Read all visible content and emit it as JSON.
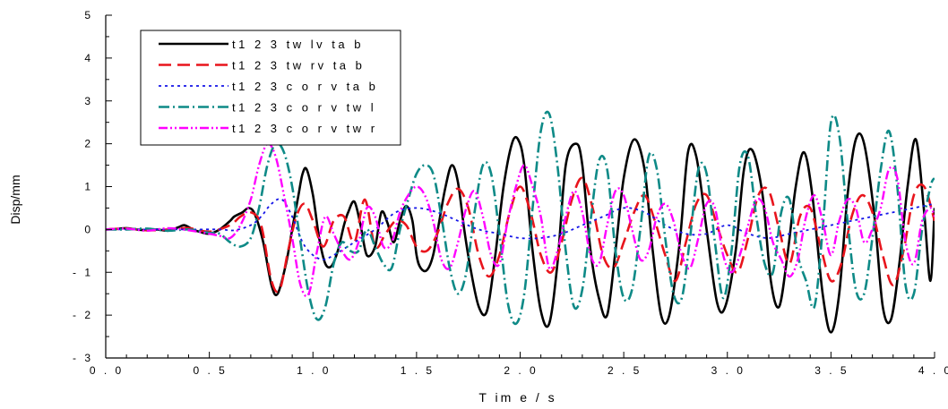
{
  "chart_data": {
    "type": "line",
    "title": "",
    "xlabel": "T im e / s",
    "ylabel": "Disp/mm",
    "xlim": [
      0,
      4
    ],
    "ylim": [
      -3,
      5
    ],
    "x_ticks": [
      0,
      0.5,
      1,
      1.5,
      2,
      2.5,
      3,
      3.5,
      4
    ],
    "x_tick_labels": [
      "0 . 0",
      "0 . 5",
      "1 . 0",
      "1 . 5",
      "2 . 0",
      "2 . 5",
      "3 . 0",
      "3 . 5",
      "4 . 0"
    ],
    "y_ticks": [
      -3,
      -2,
      -1,
      0,
      1,
      2,
      3,
      4,
      5
    ],
    "y_tick_labels": [
      "- 3",
      "- 2",
      "- 1",
      "0",
      "1",
      "2",
      "3",
      "4",
      "5"
    ],
    "grid": false,
    "legend_position": "top-left",
    "series": [
      {
        "name": "t1 2 3 tw lv ta b",
        "color": "#000000",
        "dash": "solid",
        "x": [
          0.0,
          0.05,
          0.1,
          0.15,
          0.2,
          0.25,
          0.3,
          0.35,
          0.38,
          0.42,
          0.45,
          0.5,
          0.55,
          0.6,
          0.62,
          0.66,
          0.69,
          0.72,
          0.76,
          0.8,
          0.83,
          0.87,
          0.9,
          0.93,
          0.95,
          0.97,
          1.0,
          1.03,
          1.06,
          1.09,
          1.12,
          1.15,
          1.17,
          1.2,
          1.23,
          1.26,
          1.3,
          1.33,
          1.36,
          1.39,
          1.42,
          1.45,
          1.48,
          1.5,
          1.52,
          1.55,
          1.58,
          1.61,
          1.64,
          1.67,
          1.7,
          1.73,
          1.76,
          1.8,
          1.84,
          1.88,
          1.92,
          1.96,
          1.99,
          2.02,
          2.06,
          2.1,
          2.14,
          2.18,
          2.22,
          2.27,
          2.3,
          2.34,
          2.38,
          2.42,
          2.46,
          2.5,
          2.55,
          2.6,
          2.64,
          2.68,
          2.72,
          2.77,
          2.81,
          2.85,
          2.9,
          2.95,
          2.99,
          3.04,
          3.08,
          3.12,
          3.17,
          3.21,
          3.25,
          3.29,
          3.33,
          3.37,
          3.41,
          3.46,
          3.5,
          3.54,
          3.58,
          3.62,
          3.66,
          3.71,
          3.75,
          3.79,
          3.83,
          3.87,
          3.91,
          3.95,
          3.98,
          4.0
        ],
        "values": [
          0.0,
          0.01,
          0.03,
          0.0,
          -0.02,
          0.0,
          -0.03,
          0.05,
          0.1,
          0.0,
          -0.05,
          -0.1,
          0.0,
          0.2,
          0.3,
          0.4,
          0.5,
          0.35,
          -0.3,
          -1.3,
          -1.5,
          -0.8,
          0.0,
          0.8,
          1.3,
          1.4,
          0.8,
          -0.2,
          -0.8,
          -0.85,
          -0.5,
          0.1,
          0.4,
          0.65,
          0.1,
          -0.6,
          -0.4,
          0.4,
          0.15,
          -0.3,
          0.2,
          0.55,
          0.2,
          -0.6,
          -0.9,
          -0.95,
          -0.6,
          0.2,
          1.0,
          1.5,
          1.1,
          0.0,
          -0.9,
          -1.8,
          -1.9,
          -0.6,
          1.0,
          2.0,
          2.1,
          1.5,
          -0.5,
          -1.9,
          -2.2,
          -0.8,
          1.5,
          2.0,
          1.5,
          -0.5,
          -1.6,
          -2.0,
          -0.5,
          1.2,
          2.1,
          1.4,
          -0.5,
          -2.0,
          -2.0,
          -0.3,
          1.8,
          1.7,
          0.0,
          -1.7,
          -1.8,
          -0.5,
          1.4,
          1.85,
          0.8,
          -1.2,
          -1.8,
          -0.6,
          1.0,
          1.8,
          0.8,
          -1.5,
          -2.4,
          -1.5,
          0.8,
          2.1,
          2.0,
          0.3,
          -1.8,
          -2.1,
          -0.8,
          1.0,
          2.1,
          0.4,
          -1.2,
          0.5
        ]
      },
      {
        "name": "t1 2 3 tw rv ta b",
        "color": "#e8141c",
        "dash": "14 7",
        "x": [
          0.0,
          0.1,
          0.2,
          0.3,
          0.4,
          0.5,
          0.6,
          0.65,
          0.7,
          0.75,
          0.8,
          0.84,
          0.88,
          0.92,
          0.96,
          1.0,
          1.05,
          1.1,
          1.15,
          1.2,
          1.25,
          1.3,
          1.35,
          1.4,
          1.45,
          1.5,
          1.55,
          1.6,
          1.65,
          1.7,
          1.75,
          1.8,
          1.85,
          1.9,
          1.95,
          2.0,
          2.05,
          2.1,
          2.15,
          2.2,
          2.25,
          2.3,
          2.35,
          2.4,
          2.45,
          2.5,
          2.55,
          2.6,
          2.65,
          2.7,
          2.75,
          2.8,
          2.85,
          2.9,
          2.95,
          3.0,
          3.05,
          3.1,
          3.15,
          3.2,
          3.25,
          3.3,
          3.35,
          3.4,
          3.45,
          3.5,
          3.55,
          3.6,
          3.65,
          3.7,
          3.75,
          3.8,
          3.85,
          3.9,
          3.95,
          4.0
        ],
        "values": [
          0.0,
          0.02,
          -0.02,
          0.0,
          0.03,
          -0.05,
          0.1,
          0.3,
          0.4,
          0.1,
          -1.2,
          -1.4,
          -0.5,
          0.3,
          0.6,
          0.2,
          -0.4,
          0.2,
          0.3,
          -0.3,
          0.7,
          -0.4,
          -0.1,
          0.2,
          0.1,
          -0.4,
          -0.5,
          -0.1,
          0.6,
          0.95,
          0.5,
          -0.6,
          -1.1,
          -0.6,
          0.4,
          1.0,
          0.4,
          -0.6,
          -1.0,
          -0.3,
          0.7,
          1.2,
          0.5,
          -0.6,
          -0.9,
          -0.3,
          0.4,
          0.8,
          0.2,
          -0.6,
          -1.2,
          -0.3,
          0.6,
          0.8,
          0.1,
          -0.6,
          -1.0,
          -0.2,
          0.8,
          0.9,
          0.0,
          -0.8,
          0.3,
          0.5,
          -0.4,
          -1.2,
          -0.8,
          0.3,
          0.8,
          0.4,
          -0.6,
          -1.3,
          -0.5,
          0.8,
          1.0,
          0.2
        ]
      },
      {
        "name": "t1 2 3 c o r v ta b",
        "color": "#1414e8",
        "dash": "3 4",
        "x": [
          0.0,
          0.2,
          0.4,
          0.55,
          0.62,
          0.7,
          0.75,
          0.8,
          0.85,
          0.9,
          0.95,
          1.0,
          1.05,
          1.1,
          1.2,
          1.3,
          1.4,
          1.5,
          1.6,
          1.7,
          1.8,
          1.9,
          2.0,
          2.1,
          2.2,
          2.3,
          2.4,
          2.5,
          2.6,
          2.7,
          2.8,
          2.9,
          3.0,
          3.1,
          3.2,
          3.3,
          3.4,
          3.5,
          3.6,
          3.7,
          3.8,
          3.9,
          4.0
        ],
        "values": [
          0.0,
          0.0,
          0.0,
          0.0,
          -0.02,
          0.1,
          0.3,
          0.6,
          0.7,
          0.3,
          -0.3,
          -0.6,
          -0.7,
          -0.6,
          -0.3,
          0.0,
          0.4,
          0.5,
          0.4,
          0.2,
          0.0,
          -0.1,
          -0.2,
          -0.2,
          -0.1,
          0.1,
          0.3,
          0.5,
          0.4,
          0.1,
          -0.1,
          -0.1,
          0.1,
          -0.1,
          -0.2,
          -0.1,
          0.0,
          0.1,
          0.2,
          0.3,
          0.4,
          0.5,
          0.6
        ]
      },
      {
        "name": "t1 2 3 c o r v tw l",
        "color": "#0e8a87",
        "dash": "12 4 2 4",
        "x": [
          0.0,
          0.1,
          0.2,
          0.3,
          0.4,
          0.5,
          0.55,
          0.6,
          0.65,
          0.7,
          0.74,
          0.78,
          0.82,
          0.86,
          0.9,
          0.94,
          0.98,
          1.02,
          1.06,
          1.1,
          1.14,
          1.18,
          1.22,
          1.26,
          1.3,
          1.34,
          1.38,
          1.42,
          1.46,
          1.5,
          1.54,
          1.58,
          1.62,
          1.66,
          1.7,
          1.74,
          1.78,
          1.82,
          1.86,
          1.9,
          1.94,
          1.98,
          2.02,
          2.06,
          2.1,
          2.14,
          2.18,
          2.22,
          2.26,
          2.3,
          2.34,
          2.38,
          2.42,
          2.46,
          2.5,
          2.54,
          2.58,
          2.62,
          2.66,
          2.7,
          2.74,
          2.78,
          2.82,
          2.86,
          2.9,
          2.94,
          2.98,
          3.02,
          3.06,
          3.1,
          3.14,
          3.18,
          3.22,
          3.26,
          3.3,
          3.34,
          3.38,
          3.42,
          3.46,
          3.5,
          3.54,
          3.58,
          3.62,
          3.66,
          3.7,
          3.74,
          3.78,
          3.82,
          3.86,
          3.9,
          3.94,
          3.98,
          4.0
        ],
        "values": [
          0.0,
          0.0,
          0.02,
          -0.03,
          0.0,
          -0.08,
          -0.1,
          -0.3,
          -0.4,
          -0.2,
          0.5,
          1.5,
          2.0,
          1.8,
          1.0,
          -0.3,
          -1.5,
          -2.1,
          -1.8,
          -0.8,
          -0.3,
          -0.5,
          -0.5,
          0.0,
          -0.4,
          -0.8,
          -0.9,
          0.0,
          0.7,
          1.3,
          1.5,
          1.3,
          0.3,
          -0.9,
          -1.5,
          -1.0,
          0.4,
          1.5,
          1.3,
          -0.1,
          -1.7,
          -2.2,
          -1.5,
          0.5,
          2.3,
          2.7,
          1.5,
          -0.5,
          -1.8,
          -1.4,
          0.2,
          1.6,
          1.4,
          -0.5,
          -1.6,
          -1.4,
          0.0,
          1.7,
          1.4,
          -0.2,
          -1.5,
          -1.6,
          -0.2,
          1.4,
          1.3,
          -0.3,
          -1.6,
          -0.5,
          1.5,
          1.7,
          0.3,
          -0.8,
          -1.0,
          0.4,
          0.7,
          -0.6,
          -1.2,
          -1.8,
          0.0,
          2.5,
          2.2,
          0.2,
          -1.4,
          -1.5,
          -0.2,
          1.4,
          2.3,
          1.0,
          -1.3,
          -1.5,
          0.0,
          1.0,
          1.2
        ]
      },
      {
        "name": "t1 2 3 c o r v tw r",
        "color": "#ff00ff",
        "dash": "10 3 2 3 2 3",
        "x": [
          0.0,
          0.1,
          0.2,
          0.3,
          0.4,
          0.5,
          0.55,
          0.6,
          0.65,
          0.7,
          0.74,
          0.78,
          0.82,
          0.86,
          0.9,
          0.94,
          0.98,
          1.02,
          1.06,
          1.1,
          1.14,
          1.18,
          1.22,
          1.26,
          1.3,
          1.34,
          1.38,
          1.42,
          1.46,
          1.5,
          1.54,
          1.58,
          1.62,
          1.66,
          1.7,
          1.74,
          1.78,
          1.82,
          1.86,
          1.9,
          1.94,
          1.98,
          2.02,
          2.06,
          2.1,
          2.14,
          2.18,
          2.22,
          2.26,
          2.3,
          2.34,
          2.38,
          2.42,
          2.46,
          2.5,
          2.54,
          2.58,
          2.62,
          2.66,
          2.7,
          2.74,
          2.78,
          2.82,
          2.86,
          2.9,
          2.94,
          2.98,
          3.02,
          3.06,
          3.1,
          3.14,
          3.18,
          3.22,
          3.26,
          3.3,
          3.34,
          3.38,
          3.42,
          3.46,
          3.5,
          3.54,
          3.58,
          3.62,
          3.66,
          3.7,
          3.74,
          3.78,
          3.82,
          3.86,
          3.9,
          3.94,
          3.98,
          4.0
        ],
        "values": [
          0.0,
          0.02,
          -0.03,
          0.03,
          -0.02,
          -0.1,
          -0.15,
          -0.2,
          0.1,
          0.7,
          1.5,
          2.0,
          1.7,
          0.8,
          -0.2,
          -1.3,
          -1.5,
          -0.5,
          0.3,
          -0.1,
          -0.5,
          -0.7,
          -0.3,
          0.5,
          0.3,
          -0.4,
          -0.3,
          0.4,
          0.8,
          1.0,
          0.8,
          0.2,
          -0.7,
          -0.9,
          -0.3,
          0.5,
          0.9,
          0.3,
          -0.6,
          -0.8,
          0.2,
          1.0,
          1.5,
          1.0,
          0.3,
          -0.9,
          -0.5,
          0.3,
          0.9,
          0.4,
          -0.6,
          -0.8,
          0.1,
          0.9,
          0.8,
          0.0,
          -0.7,
          -0.5,
          0.3,
          0.6,
          0.2,
          -0.6,
          -0.9,
          -0.2,
          0.6,
          0.5,
          -0.6,
          -1.0,
          -0.6,
          0.1,
          0.7,
          0.5,
          -0.3,
          -0.7,
          -1.1,
          -0.7,
          0.3,
          0.8,
          0.2,
          -0.6,
          0.2,
          0.7,
          0.5,
          -0.3,
          0.0,
          0.5,
          1.4,
          1.2,
          -0.3,
          -0.8,
          0.2,
          0.5,
          0.3
        ]
      }
    ]
  }
}
